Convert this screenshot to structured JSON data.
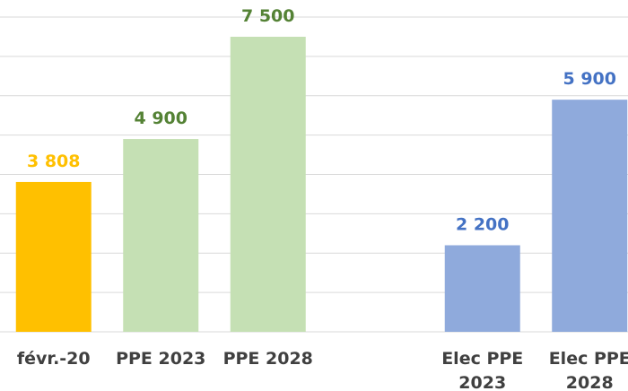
{
  "chart_data": {
    "type": "bar",
    "categories": [
      "févr.-20",
      "PPE 2023",
      "PPE 2028",
      null,
      "Elec PPE 2023",
      "Elec PPE 2028"
    ],
    "values": [
      3808,
      4900,
      7500,
      null,
      2200,
      5900
    ],
    "value_labels": [
      "3 808",
      "4 900",
      "7 500",
      null,
      "2 200",
      "5 900"
    ],
    "colors": [
      "#ffc000",
      "#c5e0b4",
      "#c5e0b4",
      null,
      "#8faadc",
      "#8faadc"
    ],
    "label_colors": [
      "#ffc000",
      "#548235",
      "#548235",
      null,
      "#4472c4",
      "#4472c4"
    ],
    "ylim": [
      0,
      8400
    ],
    "yticks": [
      0,
      1000,
      2000,
      3000,
      4000,
      5000,
      6000,
      7000,
      8000
    ],
    "grid": true
  }
}
